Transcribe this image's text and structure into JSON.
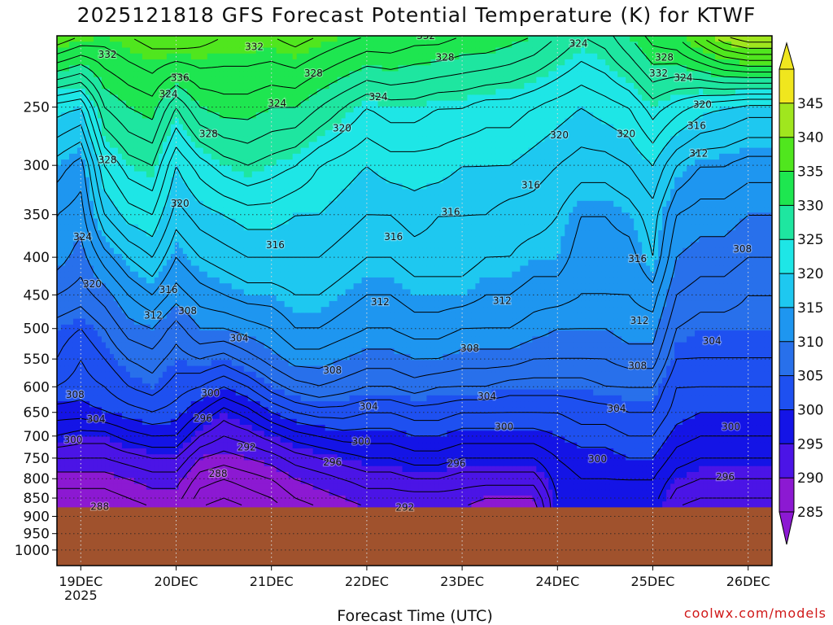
{
  "chart_data": {
    "type": "heatmap",
    "title": "2025121818 GFS Forecast Potential Temperature (K) for KTWF",
    "xlabel": "Forecast Time (UTC)",
    "ylabel": "",
    "y_scale": "log",
    "y_reversed": true,
    "y_unit": "hPa",
    "ylim": [
      1050,
      200
    ],
    "y_ticks": [
      250,
      300,
      350,
      400,
      450,
      500,
      550,
      600,
      650,
      700,
      750,
      800,
      850,
      900,
      950,
      1000
    ],
    "x_ticks": [
      {
        "label": "19DEC",
        "sublabel": "2025",
        "day": 0
      },
      {
        "label": "20DEC",
        "day": 1
      },
      {
        "label": "21DEC",
        "day": 2
      },
      {
        "label": "22DEC",
        "day": 3
      },
      {
        "label": "23DEC",
        "day": 4
      },
      {
        "label": "24DEC",
        "day": 5
      },
      {
        "label": "25DEC",
        "day": 6
      },
      {
        "label": "26DEC",
        "day": 7
      }
    ],
    "xlim_days": [
      -0.25,
      7.25
    ],
    "grid": true,
    "colorbar": {
      "levels": [
        285,
        290,
        295,
        300,
        305,
        310,
        315,
        320,
        325,
        330,
        335,
        340,
        345
      ],
      "colors": [
        "#8c19d2",
        "#4b14e6",
        "#1414e6",
        "#1e50f0",
        "#2870eb",
        "#1e96f0",
        "#1ec8f0",
        "#1ee6e6",
        "#1ee6a0",
        "#1ee650",
        "#50e61e",
        "#a0e61e",
        "#f0e61e"
      ],
      "extend": "both"
    },
    "ground_color": "#a0522d",
    "surface_pressure_hPa": 875,
    "fields": {
      "times_days": [
        -0.25,
        0.0,
        0.25,
        0.5,
        0.75,
        1.0,
        1.25,
        1.5,
        1.75,
        2.0,
        2.25,
        2.5,
        2.75,
        3.0,
        3.25,
        3.5,
        3.75,
        4.0,
        4.25,
        4.5,
        4.75,
        5.0,
        5.25,
        5.5,
        5.75,
        6.0,
        6.25,
        6.5,
        6.75,
        7.0,
        7.25
      ],
      "pressure_hPa": [
        200,
        250,
        300,
        350,
        400,
        450,
        500,
        550,
        600,
        650,
        700,
        750,
        800,
        850,
        875
      ],
      "theta_K": [
        [
          338,
          321,
          315,
          312,
          311,
          308,
          305,
          304,
          302,
          299,
          296,
          292,
          289,
          287,
          286
        ],
        [
          336,
          320,
          313,
          311,
          309,
          307,
          304,
          302,
          301,
          299,
          295,
          292,
          289,
          287,
          286
        ],
        [
          335,
          328,
          322,
          318,
          313,
          309,
          306,
          304,
          302,
          300,
          295,
          292,
          289,
          287,
          286
        ],
        [
          336,
          330,
          325,
          321,
          316,
          312,
          309,
          306,
          304,
          301,
          297,
          293,
          290,
          288,
          287
        ],
        [
          337,
          331,
          326,
          322,
          318,
          314,
          310,
          307,
          305,
          302,
          298,
          294,
          291,
          289,
          288
        ],
        [
          338,
          326,
          320,
          317,
          314,
          311,
          307,
          305,
          303,
          301,
          298,
          294,
          291,
          289,
          288
        ],
        [
          337,
          330,
          323,
          319,
          316,
          313,
          310,
          306,
          302,
          298,
          294,
          290,
          287,
          285,
          284
        ],
        [
          336,
          331,
          325,
          320,
          317,
          314,
          310,
          305,
          300,
          295,
          292,
          289,
          286,
          284,
          283
        ],
        [
          336,
          331,
          326,
          321,
          318,
          315,
          311,
          307,
          302,
          297,
          293,
          290,
          287,
          285,
          284
        ],
        [
          336,
          330,
          325,
          321,
          318,
          315,
          312,
          309,
          305,
          300,
          295,
          291,
          288,
          286,
          285
        ],
        [
          337,
          330,
          324,
          320,
          318,
          316,
          314,
          311,
          307,
          302,
          297,
          293,
          290,
          288,
          287
        ],
        [
          336,
          328,
          322,
          320,
          318,
          316,
          314,
          311,
          308,
          303,
          298,
          294,
          291,
          289,
          288
        ],
        [
          335,
          326,
          321,
          319,
          317,
          315,
          313,
          310,
          307,
          303,
          299,
          295,
          292,
          290,
          289
        ],
        [
          334,
          324,
          320,
          318,
          316,
          314,
          312,
          309,
          306,
          302,
          299,
          296,
          293,
          291,
          290
        ],
        [
          334,
          325,
          321,
          318,
          316,
          314,
          312,
          309,
          306,
          302,
          299,
          296,
          293,
          291,
          290
        ],
        [
          333,
          325,
          321,
          319,
          317,
          315,
          313,
          310,
          307,
          303,
          300,
          297,
          294,
          291,
          290
        ],
        [
          333,
          324,
          321,
          318,
          317,
          315,
          313,
          310,
          306,
          303,
          300,
          297,
          294,
          291,
          290
        ],
        [
          332,
          324,
          320,
          318,
          317,
          315,
          312,
          309,
          306,
          302,
          299,
          296,
          293,
          291,
          290
        ],
        [
          332,
          323,
          320,
          318,
          316,
          314,
          312,
          309,
          306,
          302,
          299,
          296,
          293,
          290,
          289
        ],
        [
          331,
          323,
          320,
          317,
          316,
          314,
          312,
          309,
          305,
          302,
          299,
          296,
          293,
          290,
          289
        ],
        [
          330,
          322,
          319,
          317,
          315,
          313,
          311,
          308,
          305,
          302,
          299,
          296,
          293,
          290,
          289
        ],
        [
          328,
          321,
          318,
          316,
          315,
          313,
          310,
          308,
          305,
          302,
          300,
          298,
          297,
          296,
          296
        ],
        [
          326,
          320,
          317,
          314,
          313,
          312,
          310,
          308,
          305,
          303,
          301,
          299,
          298,
          297,
          296
        ],
        [
          327,
          321,
          317,
          314,
          313,
          312,
          310,
          308,
          306,
          303,
          301,
          299,
          298,
          297,
          296
        ],
        [
          330,
          322,
          318,
          315,
          313,
          312,
          311,
          309,
          306,
          304,
          302,
          300,
          298,
          297,
          296
        ],
        [
          333,
          325,
          320,
          317,
          316,
          313,
          311,
          309,
          306,
          304,
          302,
          300,
          298,
          297,
          296
        ],
        [
          334,
          323,
          316,
          312,
          310,
          308,
          306,
          304,
          302,
          301,
          299,
          297,
          295,
          293,
          292
        ],
        [
          338,
          321,
          314,
          311,
          309,
          307,
          305,
          304,
          302,
          300,
          298,
          296,
          294,
          292,
          291
        ],
        [
          342,
          320,
          314,
          311,
          309,
          307,
          305,
          304,
          302,
          300,
          298,
          296,
          294,
          292,
          291
        ],
        [
          344,
          319,
          313,
          310,
          308,
          306,
          305,
          304,
          302,
          300,
          298,
          296,
          294,
          292,
          291
        ],
        [
          344,
          319,
          313,
          310,
          308,
          306,
          305,
          304,
          302,
          300,
          298,
          296,
          294,
          292,
          291
        ]
      ]
    },
    "contour_interval_K": 2,
    "contour_labels": [
      {
        "text": "332",
        "day": 0.28,
        "p": 212
      },
      {
        "text": "336",
        "day": 1.04,
        "p": 228
      },
      {
        "text": "324",
        "day": 0.92,
        "p": 240
      },
      {
        "text": "328",
        "day": 0.28,
        "p": 295
      },
      {
        "text": "328",
        "day": 1.34,
        "p": 272
      },
      {
        "text": "332",
        "day": 1.82,
        "p": 207
      },
      {
        "text": "328",
        "day": 2.44,
        "p": 225
      },
      {
        "text": "332",
        "day": 3.62,
        "p": 200
      },
      {
        "text": "328",
        "day": 3.82,
        "p": 214
      },
      {
        "text": "324",
        "day": 2.06,
        "p": 247
      },
      {
        "text": "324",
        "day": 3.12,
        "p": 242
      },
      {
        "text": "320",
        "day": 2.74,
        "p": 267
      },
      {
        "text": "324",
        "day": 5.22,
        "p": 205
      },
      {
        "text": "320",
        "day": 5.02,
        "p": 273
      },
      {
        "text": "320",
        "day": 5.72,
        "p": 272
      },
      {
        "text": "332",
        "day": 6.06,
        "p": 225
      },
      {
        "text": "328",
        "day": 6.12,
        "p": 214
      },
      {
        "text": "324",
        "day": 6.32,
        "p": 228
      },
      {
        "text": "320",
        "day": 6.52,
        "p": 248
      },
      {
        "text": "316",
        "day": 6.46,
        "p": 265
      },
      {
        "text": "312",
        "day": 6.48,
        "p": 289
      },
      {
        "text": "316",
        "day": 4.72,
        "p": 319
      },
      {
        "text": "320",
        "day": 1.04,
        "p": 338
      },
      {
        "text": "324",
        "day": 0.02,
        "p": 375
      },
      {
        "text": "316",
        "day": 2.04,
        "p": 385
      },
      {
        "text": "316",
        "day": 3.28,
        "p": 375
      },
      {
        "text": "316",
        "day": 3.88,
        "p": 347
      },
      {
        "text": "316",
        "day": 5.84,
        "p": 402
      },
      {
        "text": "308",
        "day": 6.94,
        "p": 390
      },
      {
        "text": "320",
        "day": 0.12,
        "p": 435
      },
      {
        "text": "316",
        "day": 0.92,
        "p": 443
      },
      {
        "text": "312",
        "day": 0.76,
        "p": 480
      },
      {
        "text": "308",
        "day": 1.12,
        "p": 473
      },
      {
        "text": "312",
        "day": 3.14,
        "p": 460
      },
      {
        "text": "312",
        "day": 4.42,
        "p": 458
      },
      {
        "text": "312",
        "day": 5.86,
        "p": 488
      },
      {
        "text": "304",
        "day": 1.66,
        "p": 515
      },
      {
        "text": "304",
        "day": 6.62,
        "p": 520
      },
      {
        "text": "308",
        "day": 2.64,
        "p": 570
      },
      {
        "text": "308",
        "day": 4.08,
        "p": 532
      },
      {
        "text": "308",
        "day": 5.84,
        "p": 562
      },
      {
        "text": "308",
        "day": -0.06,
        "p": 615
      },
      {
        "text": "300",
        "day": 1.36,
        "p": 612
      },
      {
        "text": "304",
        "day": 0.16,
        "p": 664
      },
      {
        "text": "296",
        "day": 1.28,
        "p": 662
      },
      {
        "text": "304",
        "day": 3.02,
        "p": 638
      },
      {
        "text": "304",
        "day": 4.26,
        "p": 618
      },
      {
        "text": "304",
        "day": 5.62,
        "p": 642
      },
      {
        "text": "300",
        "day": -0.08,
        "p": 708
      },
      {
        "text": "292",
        "day": 1.74,
        "p": 725
      },
      {
        "text": "300",
        "day": 2.94,
        "p": 712
      },
      {
        "text": "300",
        "day": 4.44,
        "p": 680
      },
      {
        "text": "300",
        "day": 5.42,
        "p": 752
      },
      {
        "text": "300",
        "day": 6.82,
        "p": 680
      },
      {
        "text": "296",
        "day": 2.64,
        "p": 760
      },
      {
        "text": "296",
        "day": 3.94,
        "p": 763
      },
      {
        "text": "296",
        "day": 6.76,
        "p": 795
      },
      {
        "text": "288",
        "day": 1.44,
        "p": 787
      },
      {
        "text": "292",
        "day": 3.4,
        "p": 875
      },
      {
        "text": "288",
        "day": 0.2,
        "p": 873
      }
    ]
  },
  "header": {
    "title": "2025121818 GFS Forecast Potential Temperature (K) for KTWF"
  },
  "footer": {
    "xlabel": "Forecast Time (UTC)",
    "credit": "coolwx.com/models"
  }
}
